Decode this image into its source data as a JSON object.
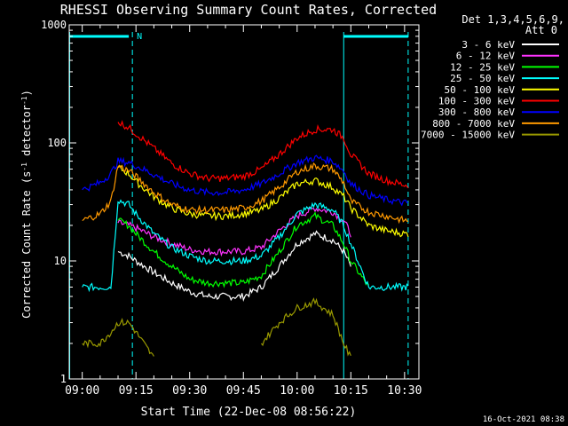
{
  "chart_data": {
    "type": "line",
    "title": "RHESSI Observing Summary Count Rates, Corrected",
    "xlabel": "Start Time (22-Dec-08 08:56:22)",
    "ylabel": "Corrected Count Rate (s⁻¹ detector⁻¹)",
    "yscale": "log",
    "ylim": [
      1,
      1000
    ],
    "xlim": [
      "08:56:22",
      "10:34:00"
    ],
    "x_ticks": [
      "09:00",
      "09:15",
      "09:30",
      "09:45",
      "10:00",
      "10:15",
      "10:30"
    ],
    "y_ticks": [
      "1",
      "10",
      "100",
      "1000"
    ],
    "legend_header": [
      "Det 1,3,4,5,6,9,",
      "Att 0"
    ],
    "legend_position": "right",
    "footer_date": "16-Oct-2021 08:38",
    "time_points": [
      "09:00",
      "09:05",
      "09:08",
      "09:10",
      "09:13",
      "09:15",
      "09:20",
      "09:25",
      "09:30",
      "09:35",
      "09:40",
      "09:45",
      "09:50",
      "09:55",
      "10:00",
      "10:05",
      "10:10",
      "10:13",
      "10:15",
      "10:20",
      "10:25",
      "10:30",
      "10:31"
    ],
    "series": [
      {
        "name": "3 - 6 keV",
        "color": "#ffffff",
        "values": [
          null,
          null,
          null,
          12,
          11,
          10,
          8,
          6.5,
          5.5,
          5,
          5,
          5,
          6,
          9,
          14,
          17,
          15,
          12,
          9,
          null,
          null,
          null,
          null
        ]
      },
      {
        "name": "6 - 12 keV",
        "color": "#ff33ff",
        "values": [
          null,
          null,
          null,
          21,
          20,
          19,
          16,
          14,
          12.5,
          12,
          12,
          12,
          13,
          18,
          24,
          28,
          26,
          22,
          17,
          null,
          null,
          null,
          null
        ]
      },
      {
        "name": "12 - 25 keV",
        "color": "#00ff00",
        "values": [
          null,
          null,
          null,
          22,
          20,
          17,
          12,
          9,
          7,
          6.5,
          6.5,
          6.5,
          7.5,
          12,
          20,
          24,
          20,
          14,
          10,
          6,
          null,
          null,
          null
        ]
      },
      {
        "name": "25 - 50 keV",
        "color": "#00ffff",
        "values": [
          6,
          6,
          6,
          33,
          30,
          25,
          17,
          13,
          11,
          10,
          10,
          10,
          11,
          16,
          25,
          30,
          27,
          20,
          14,
          6,
          6,
          6,
          6
        ]
      },
      {
        "name": "50 - 100 keV",
        "color": "#ffff00",
        "values": [
          null,
          null,
          null,
          62,
          55,
          47,
          35,
          28,
          25,
          24,
          24,
          25,
          27,
          34,
          45,
          48,
          42,
          35,
          28,
          20,
          18,
          17,
          17
        ]
      },
      {
        "name": "100 - 300 keV",
        "color": "#ff0000",
        "values": [
          null,
          null,
          null,
          150,
          135,
          120,
          90,
          67,
          55,
          50,
          50,
          52,
          60,
          80,
          110,
          130,
          130,
          110,
          80,
          55,
          48,
          44,
          44
        ]
      },
      {
        "name": "300 - 800 keV",
        "color": "#0000ff",
        "values": [
          40,
          46,
          55,
          70,
          68,
          64,
          54,
          45,
          40,
          38,
          38,
          40,
          45,
          55,
          68,
          75,
          70,
          58,
          45,
          36,
          33,
          31,
          31
        ]
      },
      {
        "name": "800 - 7000 keV",
        "color": "#ff9900",
        "values": [
          22,
          25,
          32,
          64,
          58,
          52,
          38,
          30,
          27,
          27,
          27,
          28,
          32,
          42,
          57,
          64,
          60,
          46,
          32,
          26,
          24,
          22,
          22
        ]
      },
      {
        "name": "7000 - 15000 keV",
        "color": "#999900",
        "values": [
          2,
          2,
          2.5,
          3,
          3,
          2.5,
          1.5,
          null,
          null,
          null,
          null,
          null,
          2,
          3,
          4,
          4.5,
          3.5,
          2,
          1.5,
          null,
          null,
          null,
          null
        ]
      }
    ],
    "cyan_band_label": "N",
    "cyan_band_segments": [
      [
        "08:56:22",
        "09:13"
      ],
      [
        "10:13",
        "10:31"
      ]
    ],
    "dashed_markers": [
      "09:14",
      "10:31"
    ],
    "solid_markers": [
      "08:56:30",
      "10:13"
    ]
  }
}
